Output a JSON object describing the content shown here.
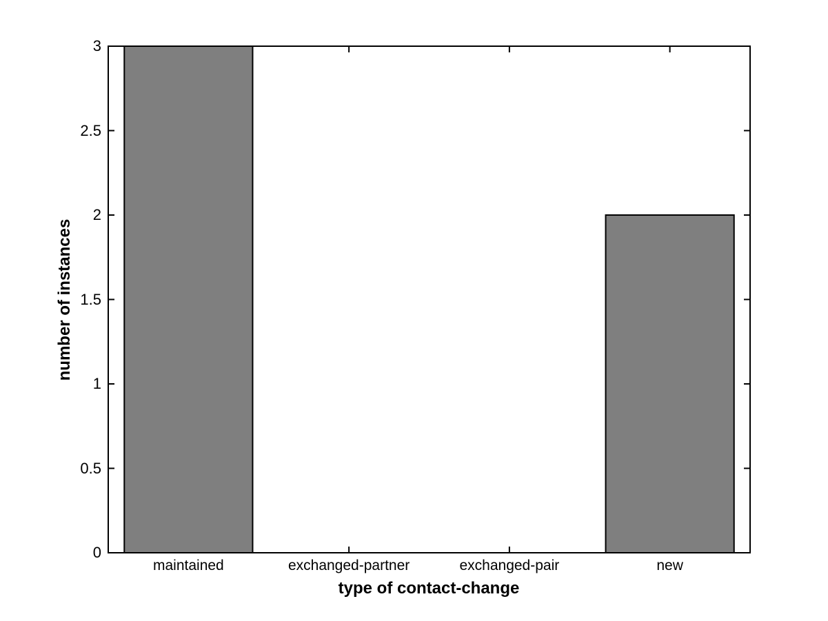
{
  "chart_data": {
    "type": "bar",
    "title": "",
    "categories": [
      "maintained",
      "exchanged-partner",
      "exchanged-pair",
      "new"
    ],
    "values": [
      3,
      0,
      0,
      2
    ],
    "xlabel": "type of contact-change",
    "ylabel": "number of instances",
    "ylim": [
      0,
      3
    ],
    "yticks": [
      0,
      0.5,
      1,
      1.5,
      2,
      2.5,
      3
    ],
    "ytick_labels": [
      "0",
      "0.5",
      "1",
      "1.5",
      "2",
      "2.5",
      "3"
    ],
    "bar_width_fraction": 0.8,
    "bar_color": "#7f7f7f",
    "edge_color": "#000000",
    "axis_color": "#000000",
    "background_color": "#ffffff",
    "grid": false,
    "legend": null
  }
}
